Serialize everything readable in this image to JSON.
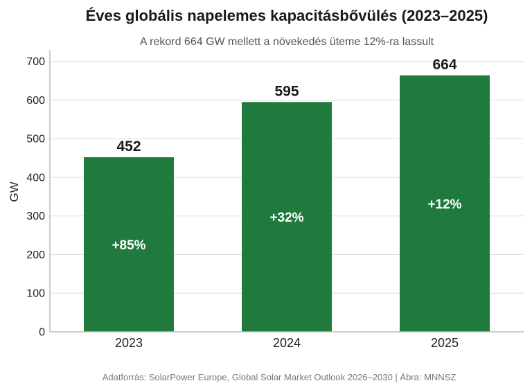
{
  "chart_data": {
    "type": "bar",
    "title": "Éves globális napelemes kapacitásbővülés (2023–2025)",
    "subtitle": "A rekord 664 GW mellett a növekedés üteme 12%-ra lassult",
    "ylabel": "GW",
    "xlabel": "",
    "categories": [
      "2023",
      "2024",
      "2025"
    ],
    "values": [
      452,
      595,
      664
    ],
    "value_labels": [
      "452",
      "595",
      "664"
    ],
    "growth_labels": [
      "+85%",
      "+32%",
      "+12%"
    ],
    "ylim": [
      0,
      730
    ],
    "yticks": [
      0,
      100,
      200,
      300,
      400,
      500,
      600,
      700
    ],
    "grid": true,
    "bar_color": "#207a3e"
  },
  "footer": "Adatforrás: SolarPower Europe, Global Solar Market Outlook 2026–2030  |  Ábra: MNNSZ"
}
